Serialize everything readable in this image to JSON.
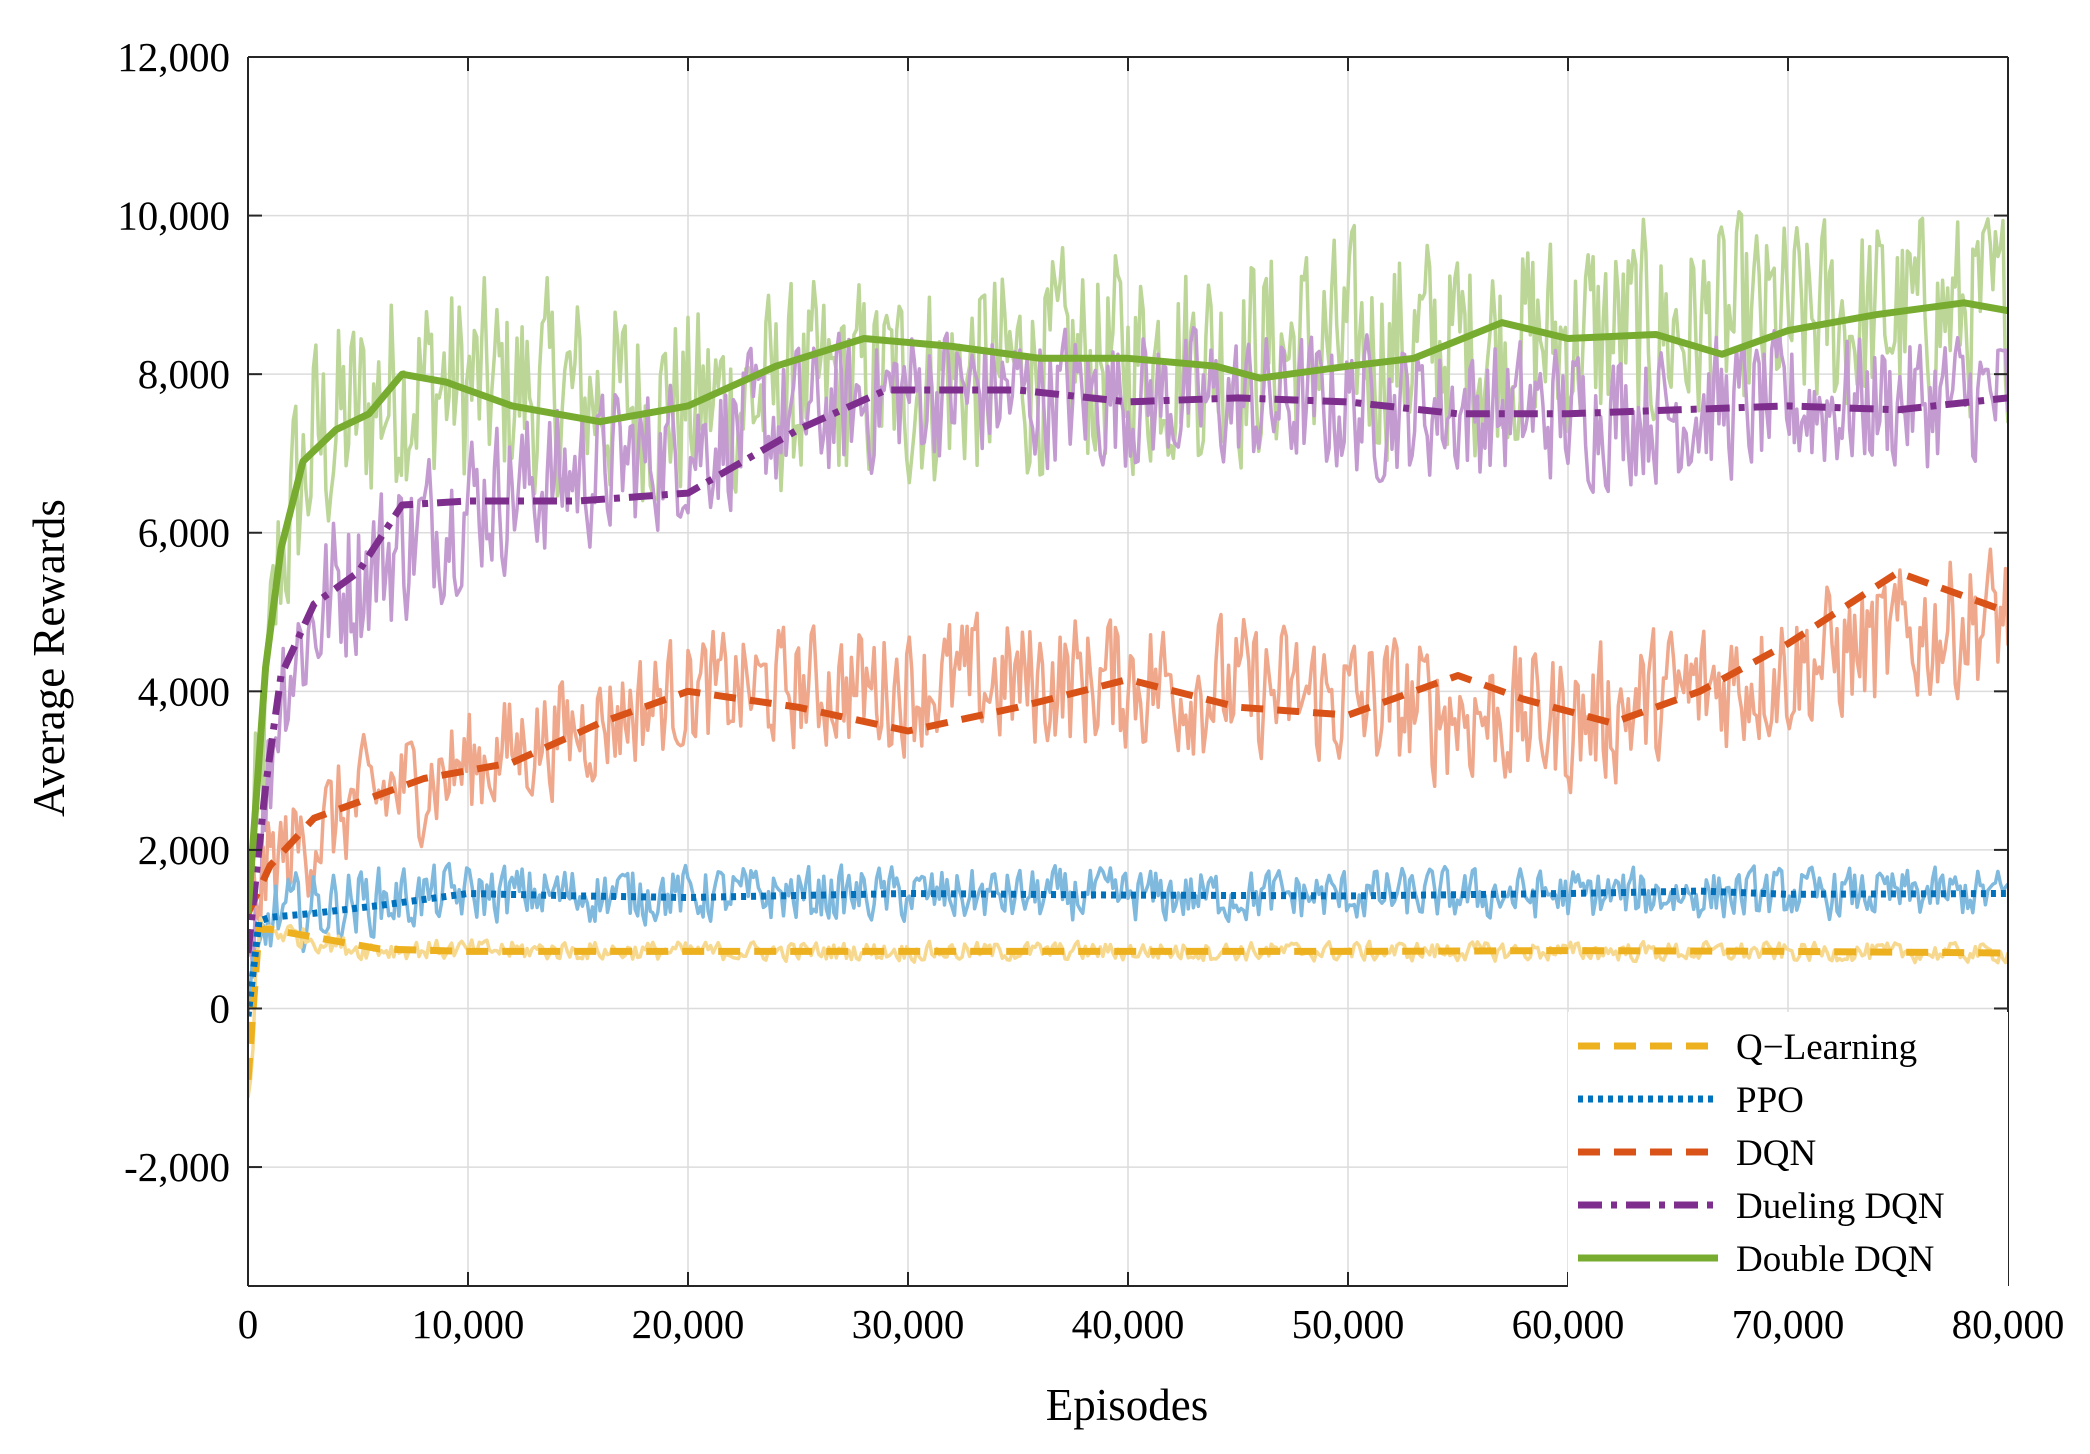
{
  "chart_data": {
    "type": "line",
    "title": "",
    "xlabel": "Episodes",
    "ylabel": "Average Rewards",
    "xlim": [
      0,
      80000
    ],
    "ylim": [
      -3500,
      12000
    ],
    "grid": true,
    "legend_position": "bottom-right",
    "x_ticks": [
      0,
      10000,
      20000,
      30000,
      40000,
      50000,
      60000,
      70000,
      80000
    ],
    "x_tick_labels": [
      "0",
      "10,000",
      "20,000",
      "30,000",
      "40,000",
      "50,000",
      "60,000",
      "70,000",
      "80,000"
    ],
    "y_ticks": [
      -2000,
      0,
      2000,
      4000,
      6000,
      8000,
      10000,
      12000
    ],
    "y_tick_labels": [
      "-2,000",
      "0",
      "2,000",
      "4,000",
      "6,000",
      "8,000",
      "10,000",
      "12,000"
    ],
    "series": [
      {
        "name": "Q−Learning",
        "color": "#EDB120",
        "raw_color": "#F7D88F",
        "style": "dashed",
        "smoothed": {
          "x": [
            0,
            500,
            1000,
            2000,
            4000,
            6000,
            10000,
            20000,
            30000,
            40000,
            50000,
            60000,
            70000,
            80000
          ],
          "y": [
            -900,
            1000,
            1000,
            950,
            850,
            750,
            720,
            720,
            720,
            720,
            720,
            730,
            720,
            700
          ]
        },
        "raw_band": {
          "x": [
            0,
            500,
            1000,
            5000,
            20000,
            40000,
            60000,
            80000
          ],
          "y": [
            -1200,
            1000,
            1000,
            750,
            720,
            720,
            720,
            700
          ],
          "amplitude": [
            700,
            250,
            200,
            160,
            150,
            150,
            150,
            150
          ]
        }
      },
      {
        "name": "PPO",
        "color": "#0072BD",
        "raw_color": "#80B9DE",
        "style": "dotted",
        "smoothed": {
          "x": [
            0,
            500,
            1000,
            3000,
            6000,
            10000,
            15000,
            20000,
            30000,
            40000,
            50000,
            60000,
            66000,
            70000,
            80000
          ],
          "y": [
            -100,
            1100,
            1150,
            1200,
            1300,
            1450,
            1420,
            1400,
            1450,
            1430,
            1420,
            1450,
            1480,
            1440,
            1450
          ]
        },
        "raw_band": {
          "x": [
            0,
            1000,
            5000,
            10000,
            40000,
            80000
          ],
          "y": [
            -100,
            1150,
            1350,
            1450,
            1420,
            1450
          ],
          "amplitude": [
            600,
            600,
            550,
            450,
            420,
            380
          ]
        }
      },
      {
        "name": "DQN",
        "color": "#D95319",
        "raw_color": "#EFA88B",
        "style": "dashed",
        "smoothed": {
          "x": [
            0,
            1000,
            3000,
            5000,
            8000,
            12000,
            16000,
            20000,
            25000,
            30000,
            35000,
            40000,
            45000,
            50000,
            55000,
            58000,
            62000,
            66000,
            70000,
            75000,
            80000
          ],
          "y": [
            1200,
            1800,
            2400,
            2600,
            2900,
            3100,
            3600,
            4000,
            3800,
            3500,
            3800,
            4150,
            3800,
            3700,
            4200,
            3900,
            3600,
            4000,
            4600,
            5500,
            5000
          ]
        },
        "raw_band": {
          "x": [
            0,
            1000,
            5000,
            20000,
            40000,
            60000,
            80000
          ],
          "y": [
            1200,
            1800,
            2600,
            4000,
            4150,
            3600,
            5000
          ],
          "amplitude": [
            900,
            900,
            900,
            900,
            1100,
            1100,
            1100
          ]
        }
      },
      {
        "name": "Dueling DQN",
        "color": "#7E2F8E",
        "raw_color": "#C39BD0",
        "style": "dash-dot",
        "smoothed": {
          "x": [
            0,
            800,
            1500,
            3000,
            5000,
            7000,
            10000,
            15000,
            20000,
            25000,
            29000,
            35000,
            40000,
            45000,
            50000,
            55000,
            60000,
            65000,
            70000,
            75000,
            80000
          ],
          "y": [
            700,
            2800,
            4200,
            5100,
            5500,
            6350,
            6400,
            6400,
            6500,
            7300,
            7800,
            7800,
            7650,
            7700,
            7650,
            7500,
            7500,
            7550,
            7600,
            7550,
            7700
          ]
        },
        "raw_band": {
          "x": [
            0,
            1500,
            4000,
            10000,
            30000,
            60000,
            80000
          ],
          "y": [
            700,
            4200,
            5300,
            6400,
            7800,
            7500,
            7700
          ],
          "amplitude": [
            1200,
            1200,
            1300,
            1200,
            1100,
            1100,
            1100
          ]
        }
      },
      {
        "name": "Double DQN",
        "color": "#77AC30",
        "raw_color": "#BBD697",
        "style": "solid",
        "smoothed": {
          "x": [
            0,
            800,
            1500,
            2500,
            4000,
            5500,
            7000,
            9000,
            12000,
            16000,
            20000,
            24000,
            28000,
            32000,
            36000,
            40000,
            44000,
            46000,
            50000,
            53000,
            57000,
            60000,
            64000,
            67000,
            70000,
            74000,
            78000,
            80000
          ],
          "y": [
            1200,
            4300,
            5800,
            6900,
            7300,
            7500,
            8000,
            7900,
            7600,
            7400,
            7600,
            8100,
            8450,
            8350,
            8200,
            8200,
            8100,
            7950,
            8100,
            8200,
            8650,
            8450,
            8500,
            8250,
            8550,
            8750,
            8900,
            8800
          ]
        },
        "raw_band": {
          "x": [
            0,
            1500,
            3000,
            7000,
            20000,
            40000,
            60000,
            80000
          ],
          "y": [
            1200,
            5800,
            7100,
            7900,
            7600,
            8200,
            8450,
            8800
          ],
          "amplitude": [
            1500,
            1800,
            1800,
            1700,
            1600,
            1700,
            1700,
            1600
          ]
        }
      }
    ]
  }
}
